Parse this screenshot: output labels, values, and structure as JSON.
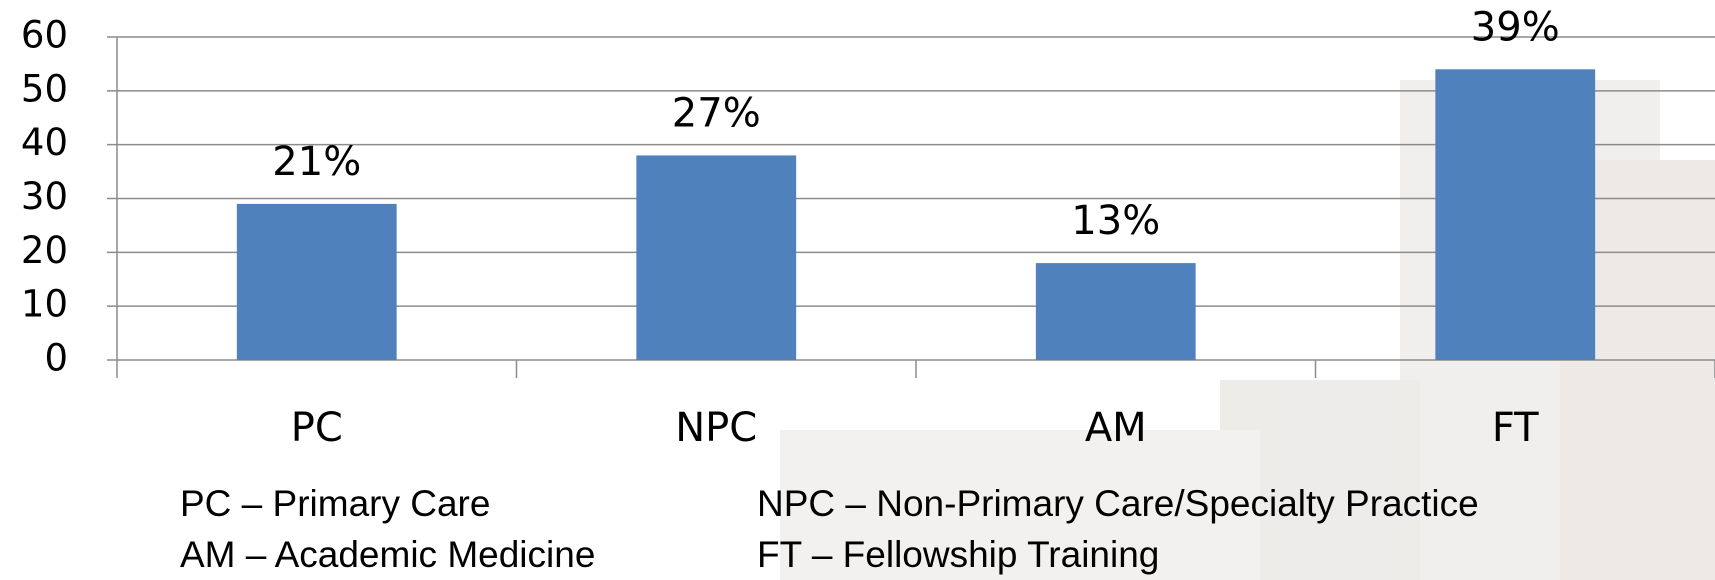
{
  "chart_data": {
    "type": "bar",
    "categories": [
      "PC",
      "NPC",
      "AM",
      "FT"
    ],
    "values": [
      29,
      38,
      18,
      54
    ],
    "annotations": [
      "21%",
      "27%",
      "13%",
      "39%"
    ],
    "color": "#4f81bd",
    "ylim": [
      0,
      60
    ],
    "yticks": [
      0,
      10,
      20,
      30,
      40,
      50,
      60
    ],
    "grid": true,
    "notes": [
      "PC – Primary Care",
      "NPC – Non-Primary Care/Specialty Practice",
      "AM – Academic Medicine",
      "FT – Fellowship Training"
    ]
  }
}
